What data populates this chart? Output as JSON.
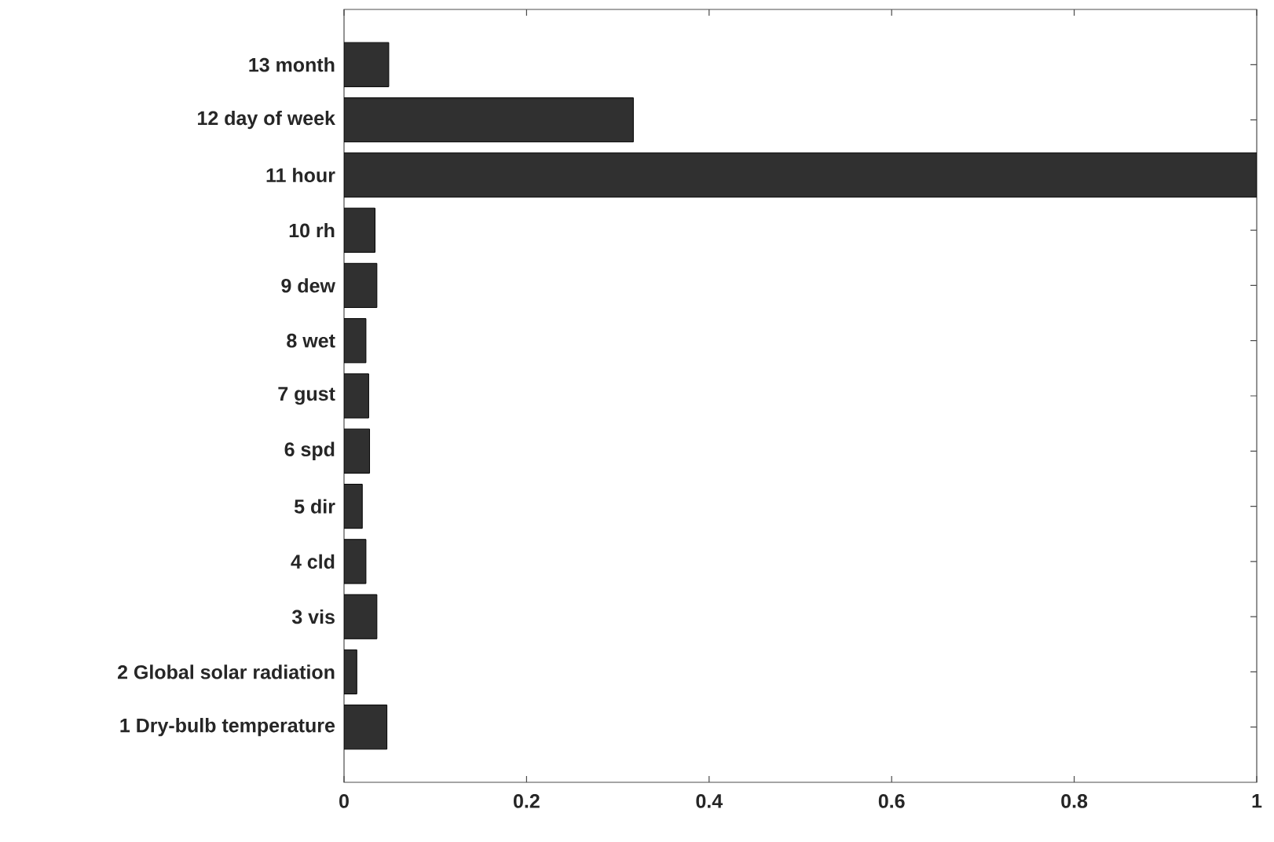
{
  "chart_data": {
    "type": "bar",
    "orientation": "horizontal",
    "categories": [
      "13 month",
      "12 day of week",
      "11 hour",
      "10 rh",
      "9 dew",
      "8 wet",
      "7 gust",
      "6 spd",
      "5 dir",
      "4 cld",
      "3 vis",
      "2 Global solar radiation",
      "1 Dry-bulb temperature"
    ],
    "values": [
      0.049,
      0.317,
      1,
      0.034,
      0.036,
      0.024,
      0.027,
      0.028,
      0.02,
      0.024,
      0.036,
      0.014,
      0.047
    ],
    "color": "#303030",
    "xlim": [
      0,
      1
    ],
    "xticks": [
      0,
      0.2,
      0.4,
      0.6,
      0.8,
      1
    ]
  }
}
